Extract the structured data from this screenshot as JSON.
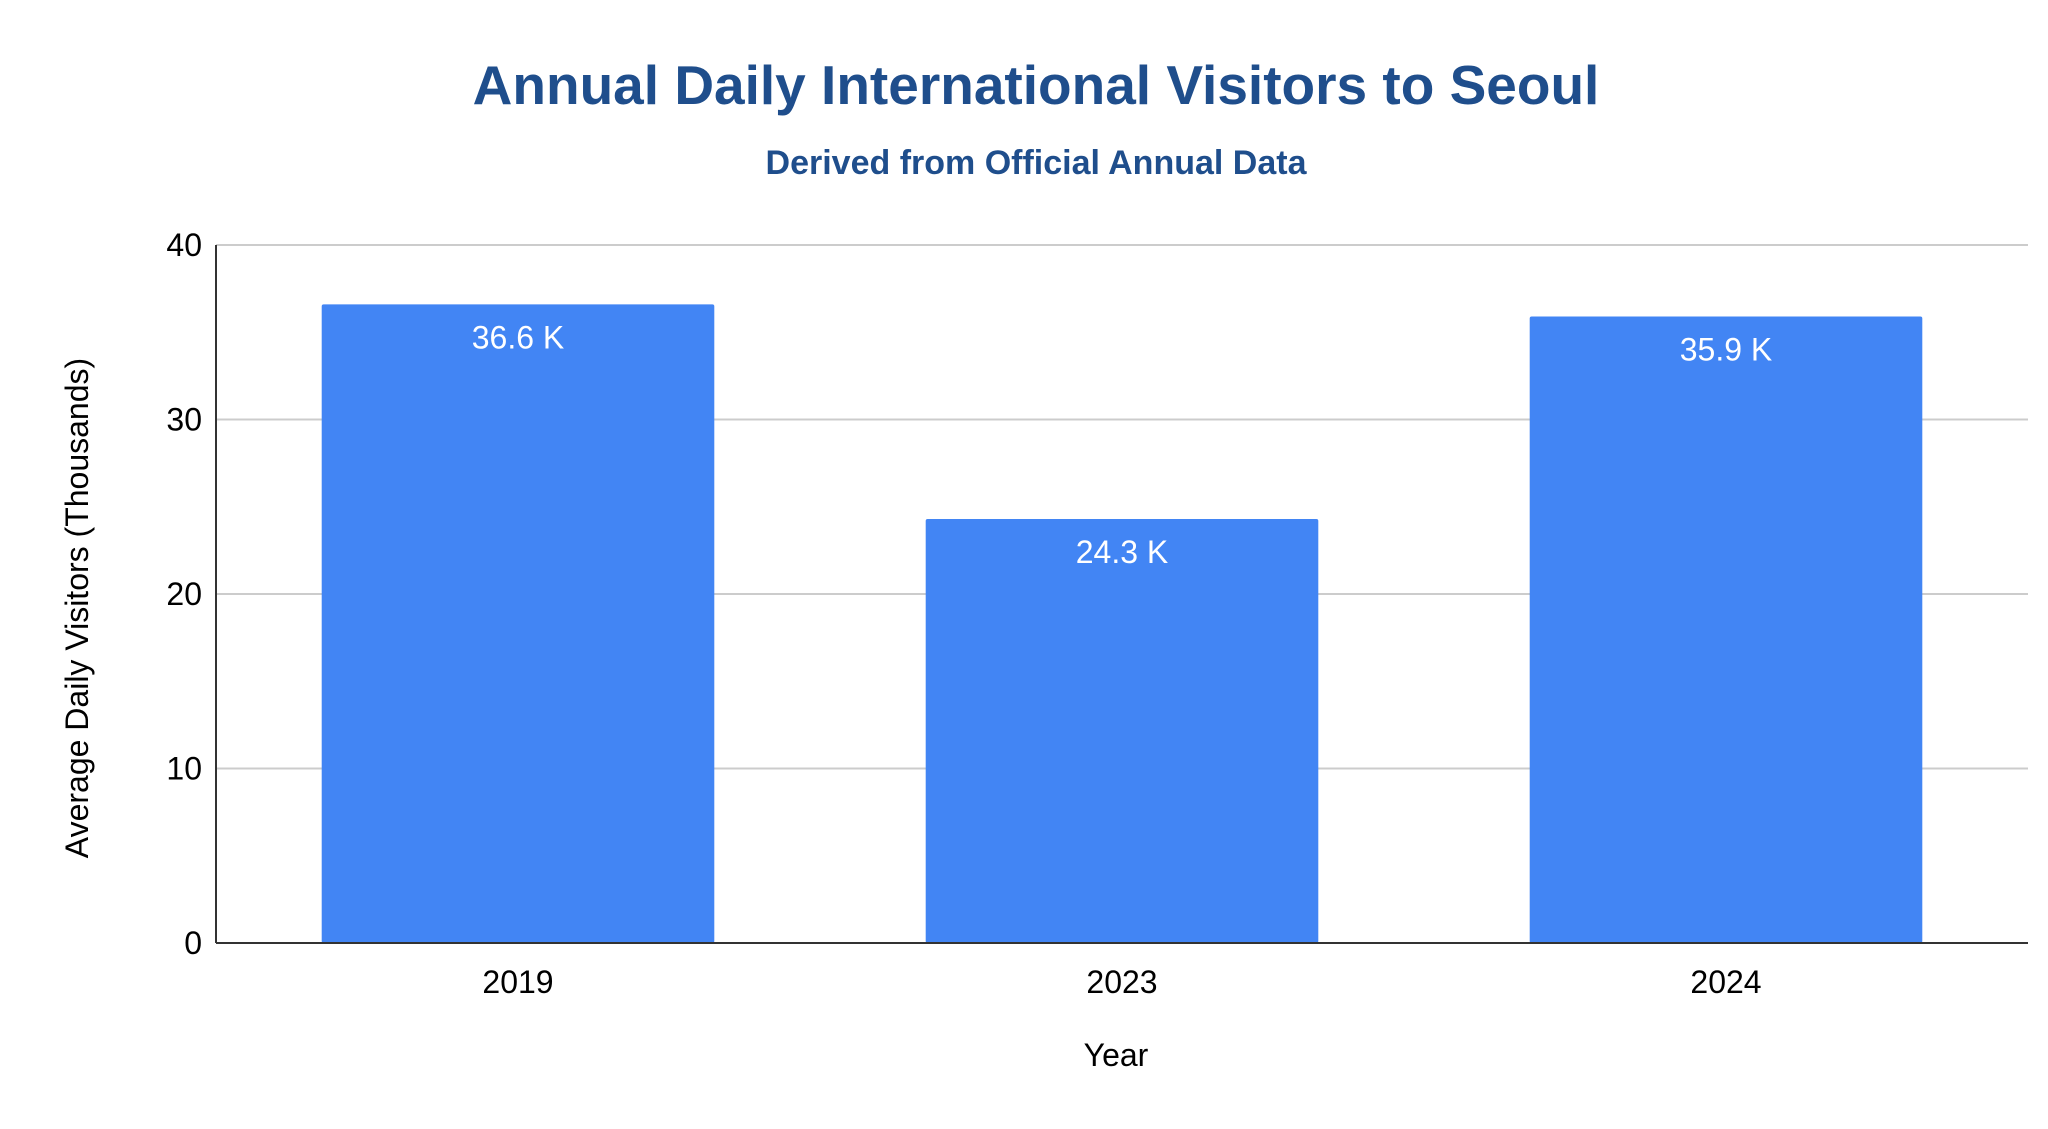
{
  "chart_data": {
    "type": "bar",
    "title": "Annual Daily International Visitors to Seoul",
    "subtitle": "Derived from Official Annual Data",
    "xlabel": "Year",
    "ylabel": "Average Daily Visitors (Thousands)",
    "categories": [
      "2019",
      "2023",
      "2024"
    ],
    "values": [
      36.6,
      24.3,
      35.9
    ],
    "data_labels": [
      "36.6 K",
      "24.3 K",
      "35.9 K"
    ],
    "yticks": [
      0,
      10,
      20,
      30,
      40
    ],
    "ylim": [
      0,
      40
    ],
    "grid": true,
    "legend": "none",
    "colors": {
      "bar": "#4285f4",
      "title": "#1f4e8c",
      "gridline": "#cccccc",
      "axis": "#333333",
      "text": "#000000",
      "data_label": "#ffffff"
    }
  }
}
